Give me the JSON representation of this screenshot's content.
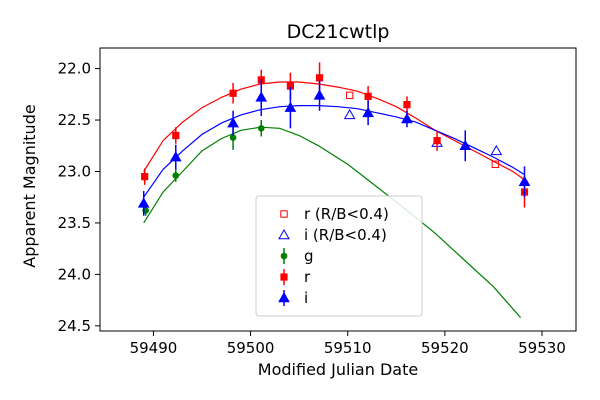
{
  "chart_data": {
    "type": "scatter",
    "title": "DC21cwtlp",
    "xlabel": "Modified Julian Date",
    "ylabel": "Apparent Magnitude",
    "xlim": [
      59484.5,
      59533.5
    ],
    "ylim": [
      24.55,
      21.8
    ],
    "y_inverted": true,
    "xticks": [
      59490,
      59500,
      59510,
      59520,
      59530
    ],
    "yticks": [
      22.0,
      22.5,
      23.0,
      23.5,
      24.0,
      24.5
    ],
    "grid": false,
    "legend_placement": "lower-center",
    "series": [
      {
        "name": "r (R/B<0.4)",
        "kind": "points",
        "marker": "open-square",
        "color": "#ff0000",
        "points": [
          {
            "x": 59510.2,
            "y": 22.26
          },
          {
            "x": 59525.2,
            "y": 22.93
          }
        ]
      },
      {
        "name": "i (R/B<0.4)",
        "kind": "points",
        "marker": "open-triangle",
        "color": "#0000ff",
        "points": [
          {
            "x": 59510.2,
            "y": 22.45
          },
          {
            "x": 59519.2,
            "y": 22.72
          },
          {
            "x": 59525.3,
            "y": 22.8
          }
        ]
      },
      {
        "name": "g",
        "kind": "points",
        "marker": "circle",
        "color": "#008000",
        "points": [
          {
            "x": 59489.2,
            "y": 23.38,
            "err": 0.05
          },
          {
            "x": 59492.3,
            "y": 23.04,
            "err": 0.06
          },
          {
            "x": 59498.2,
            "y": 22.67,
            "err": 0.12
          },
          {
            "x": 59501.1,
            "y": 22.58,
            "err": 0.08
          }
        ]
      },
      {
        "name": "r",
        "kind": "points",
        "marker": "square",
        "color": "#ff0000",
        "points": [
          {
            "x": 59489.1,
            "y": 23.05,
            "err": 0.08
          },
          {
            "x": 59492.3,
            "y": 22.65,
            "err": 0.08
          },
          {
            "x": 59498.2,
            "y": 22.24,
            "err": 0.1
          },
          {
            "x": 59501.1,
            "y": 22.11,
            "err": 0.1
          },
          {
            "x": 59504.1,
            "y": 22.17,
            "err": 0.13
          },
          {
            "x": 59507.1,
            "y": 22.09,
            "err": 0.15
          },
          {
            "x": 59512.1,
            "y": 22.27,
            "err": 0.1
          },
          {
            "x": 59516.1,
            "y": 22.35,
            "err": 0.08
          },
          {
            "x": 59519.2,
            "y": 22.7,
            "err": 0.1
          },
          {
            "x": 59528.2,
            "y": 23.2,
            "err": 0.15
          }
        ]
      },
      {
        "name": "i",
        "kind": "points",
        "marker": "triangle",
        "color": "#0000ff",
        "points": [
          {
            "x": 59489.0,
            "y": 23.31,
            "err": 0.12
          },
          {
            "x": 59492.3,
            "y": 22.86,
            "err": 0.12
          },
          {
            "x": 59498.2,
            "y": 22.53,
            "err": 0.12
          },
          {
            "x": 59501.1,
            "y": 22.28,
            "err": 0.18
          },
          {
            "x": 59504.1,
            "y": 22.38,
            "err": 0.2
          },
          {
            "x": 59507.1,
            "y": 22.26,
            "err": 0.15
          },
          {
            "x": 59512.1,
            "y": 22.43,
            "err": 0.12
          },
          {
            "x": 59516.1,
            "y": 22.49,
            "err": 0.08
          },
          {
            "x": 59522.1,
            "y": 22.75,
            "err": 0.15
          },
          {
            "x": 59528.2,
            "y": 23.1,
            "err": 0.15
          }
        ]
      },
      {
        "name": "",
        "kind": "curve",
        "color": "#ff0000",
        "points": [
          {
            "x": 59489.0,
            "y": 23.0
          },
          {
            "x": 59491.0,
            "y": 22.7
          },
          {
            "x": 59493.0,
            "y": 22.52
          },
          {
            "x": 59495.0,
            "y": 22.38
          },
          {
            "x": 59497.0,
            "y": 22.28
          },
          {
            "x": 59499.0,
            "y": 22.2
          },
          {
            "x": 59501.0,
            "y": 22.15
          },
          {
            "x": 59503.0,
            "y": 22.13
          },
          {
            "x": 59505.0,
            "y": 22.13
          },
          {
            "x": 59507.0,
            "y": 22.15
          },
          {
            "x": 59509.0,
            "y": 22.18
          },
          {
            "x": 59511.0,
            "y": 22.22
          },
          {
            "x": 59513.0,
            "y": 22.29
          },
          {
            "x": 59515.0,
            "y": 22.37
          },
          {
            "x": 59517.0,
            "y": 22.48
          },
          {
            "x": 59519.0,
            "y": 22.6
          },
          {
            "x": 59521.0,
            "y": 22.7
          },
          {
            "x": 59523.0,
            "y": 22.8
          },
          {
            "x": 59525.0,
            "y": 22.9
          },
          {
            "x": 59527.0,
            "y": 23.0
          },
          {
            "x": 59528.2,
            "y": 23.08
          }
        ]
      },
      {
        "name": "",
        "kind": "curve",
        "color": "#0000ff",
        "points": [
          {
            "x": 59489.0,
            "y": 23.25
          },
          {
            "x": 59491.0,
            "y": 22.98
          },
          {
            "x": 59493.0,
            "y": 22.8
          },
          {
            "x": 59495.0,
            "y": 22.64
          },
          {
            "x": 59497.0,
            "y": 22.53
          },
          {
            "x": 59499.0,
            "y": 22.45
          },
          {
            "x": 59501.0,
            "y": 22.4
          },
          {
            "x": 59503.0,
            "y": 22.37
          },
          {
            "x": 59505.0,
            "y": 22.36
          },
          {
            "x": 59507.0,
            "y": 22.36
          },
          {
            "x": 59509.0,
            "y": 22.37
          },
          {
            "x": 59511.0,
            "y": 22.39
          },
          {
            "x": 59513.0,
            "y": 22.43
          },
          {
            "x": 59515.0,
            "y": 22.47
          },
          {
            "x": 59517.0,
            "y": 22.52
          },
          {
            "x": 59519.0,
            "y": 22.6
          },
          {
            "x": 59521.0,
            "y": 22.68
          },
          {
            "x": 59523.0,
            "y": 22.77
          },
          {
            "x": 59525.0,
            "y": 22.86
          },
          {
            "x": 59527.0,
            "y": 22.96
          },
          {
            "x": 59528.2,
            "y": 23.03
          }
        ]
      },
      {
        "name": "",
        "kind": "curve",
        "color": "#008000",
        "points": [
          {
            "x": 59489.0,
            "y": 23.5
          },
          {
            "x": 59491.0,
            "y": 23.2
          },
          {
            "x": 59493.0,
            "y": 23.0
          },
          {
            "x": 59495.0,
            "y": 22.8
          },
          {
            "x": 59497.0,
            "y": 22.68
          },
          {
            "x": 59499.0,
            "y": 22.6
          },
          {
            "x": 59501.0,
            "y": 22.57
          },
          {
            "x": 59503.0,
            "y": 22.58
          },
          {
            "x": 59505.0,
            "y": 22.65
          },
          {
            "x": 59507.0,
            "y": 22.75
          },
          {
            "x": 59510.0,
            "y": 22.93
          },
          {
            "x": 59513.0,
            "y": 23.15
          },
          {
            "x": 59516.0,
            "y": 23.37
          },
          {
            "x": 59519.0,
            "y": 23.6
          },
          {
            "x": 59522.0,
            "y": 23.86
          },
          {
            "x": 59525.0,
            "y": 24.12
          },
          {
            "x": 59527.8,
            "y": 24.42
          }
        ]
      }
    ],
    "legend": [
      {
        "label": "r (R/B<0.4)",
        "marker": "open-square",
        "color": "#ff0000"
      },
      {
        "label": "i (R/B<0.4)",
        "marker": "open-triangle",
        "color": "#0000ff"
      },
      {
        "label": "g",
        "marker": "circle",
        "color": "#008000"
      },
      {
        "label": "r",
        "marker": "square",
        "color": "#ff0000"
      },
      {
        "label": "i",
        "marker": "triangle",
        "color": "#0000ff"
      }
    ]
  }
}
